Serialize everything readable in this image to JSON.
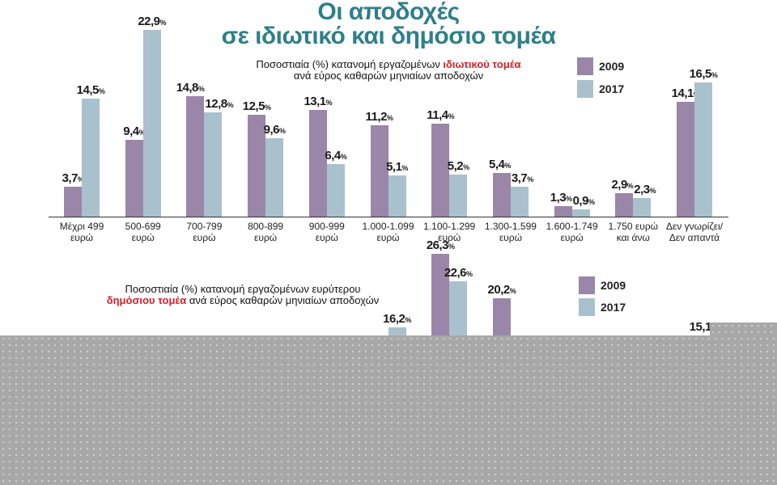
{
  "title_lines": [
    "Οι αποδοχές",
    "σε ιδιωτικό και δημόσιο τομέα"
  ],
  "colors": {
    "title": "#2f7f89",
    "series_2009": "#9a86a8",
    "series_2017": "#a8c1cc",
    "highlight": "#d3202a",
    "occluder": "#a8a8a8"
  },
  "chart_data": [
    {
      "type": "bar",
      "subtitle": {
        "pre": "Ποσοστιαία (%) κατανομή εργαζομένων ",
        "highlight": "ιδιωτικού τομέα",
        "post": "ανά εύρος καθαρών μηνιαίων αποδοχών"
      },
      "categories": [
        "Μέχρι 499 ευρώ",
        "500-699 ευρώ",
        "700-799 ευρώ",
        "800-899 ευρώ",
        "900-999 ευρώ",
        "1.000-1.099 ευρώ",
        "1.100-1.299 ευρώ",
        "1.300-1.599 ευρώ",
        "1.600-1.749 ευρώ",
        "1.750 ευρώ και άνω",
        "Δεν γνωρίζει/ Δεν απαντά"
      ],
      "category_lines": [
        [
          "Μέχρι 499",
          "ευρώ"
        ],
        [
          "500-699",
          "ευρώ"
        ],
        [
          "700-799",
          "ευρώ"
        ],
        [
          "800-899",
          "ευρώ"
        ],
        [
          "900-999",
          "ευρώ"
        ],
        [
          "1.000-1.099",
          "ευρώ"
        ],
        [
          "1.100-1.299",
          "ευρώ"
        ],
        [
          "1.300-1.599",
          "ευρώ"
        ],
        [
          "1.600-1.749",
          "ευρώ"
        ],
        [
          "1.750 ευρώ",
          "και άνω"
        ],
        [
          "Δεν γνωρίζει/",
          "Δεν απαντά"
        ]
      ],
      "series": [
        {
          "name": "2009",
          "values": [
            3.7,
            9.4,
            14.8,
            12.5,
            13.1,
            11.2,
            11.4,
            5.4,
            1.3,
            2.9,
            14.1
          ]
        },
        {
          "name": "2017",
          "values": [
            14.5,
            22.9,
            12.8,
            9.6,
            6.4,
            5.1,
            5.2,
            3.7,
            0.9,
            2.3,
            16.5
          ]
        }
      ],
      "unit": "%",
      "legend": "top-right",
      "grid": false
    },
    {
      "type": "bar",
      "subtitle": {
        "pre": "Ποσοστιαία (%) κατανομή εργαζομένων ευρύτερου",
        "highlight": "δημόσιου τομέα",
        "post": " ανά εύρος καθαρών μηνιαίων αποδοχών"
      },
      "series": [
        {
          "name": "2009",
          "values": [
            null,
            null,
            null,
            null,
            null,
            null,
            26.3,
            20.2,
            null,
            null,
            null
          ]
        },
        {
          "name": "2017",
          "values": [
            null,
            null,
            null,
            null,
            null,
            16.2,
            22.6,
            null,
            null,
            null,
            15.1
          ]
        }
      ],
      "unit": "%",
      "legend": "top-right",
      "grid": false
    }
  ]
}
